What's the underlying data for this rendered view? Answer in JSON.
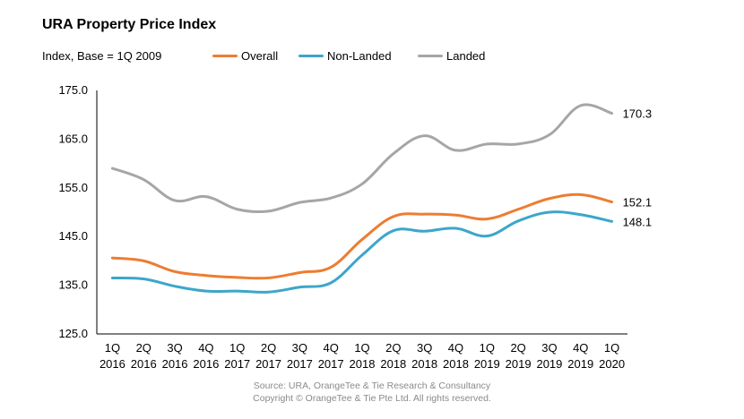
{
  "chart_data": {
    "type": "line",
    "title": "URA Property Price Index",
    "subtitle": "Index, Base = 1Q 2009",
    "categories": [
      [
        "1Q",
        "2016"
      ],
      [
        "2Q",
        "2016"
      ],
      [
        "3Q",
        "2016"
      ],
      [
        "4Q",
        "2016"
      ],
      [
        "1Q",
        "2017"
      ],
      [
        "2Q",
        "2017"
      ],
      [
        "3Q",
        "2017"
      ],
      [
        "4Q",
        "2017"
      ],
      [
        "1Q",
        "2018"
      ],
      [
        "2Q",
        "2018"
      ],
      [
        "3Q",
        "2018"
      ],
      [
        "4Q",
        "2018"
      ],
      [
        "1Q",
        "2019"
      ],
      [
        "2Q",
        "2019"
      ],
      [
        "3Q",
        "2019"
      ],
      [
        "4Q",
        "2019"
      ],
      [
        "1Q",
        "2020"
      ]
    ],
    "ylim": [
      125,
      175
    ],
    "yticks": [
      "125.0",
      "135.0",
      "145.0",
      "155.0",
      "165.0",
      "175.0"
    ],
    "grid": false,
    "legend_position": "top",
    "series": [
      {
        "name": "Overall",
        "color": "#ED7D31",
        "values": [
          140.6,
          140.0,
          137.8,
          137.0,
          136.6,
          136.5,
          137.6,
          138.7,
          144.4,
          149.1,
          149.6,
          149.4,
          148.6,
          150.6,
          152.8,
          153.6,
          152.1
        ],
        "end_label": "152.1"
      },
      {
        "name": "Non-Landed",
        "color": "#3CA6C9",
        "values": [
          136.5,
          136.3,
          134.8,
          133.8,
          133.8,
          133.6,
          134.6,
          135.5,
          141.2,
          146.2,
          146.1,
          146.7,
          145.1,
          148.2,
          150.0,
          149.5,
          148.1
        ],
        "end_label": "148.1"
      },
      {
        "name": "Landed",
        "color": "#A6A6A6",
        "values": [
          159.0,
          156.7,
          152.4,
          153.2,
          150.6,
          150.2,
          152.0,
          152.9,
          155.8,
          162.0,
          165.7,
          162.7,
          164.0,
          164.0,
          165.9,
          171.9,
          170.3
        ],
        "end_label": "170.3"
      }
    ]
  },
  "source": {
    "line1": "Source: URA, OrangeTee & Tie Research & Consultancy",
    "line2": "Copyright © OrangeTee & Tie Pte Ltd. All rights reserved."
  }
}
